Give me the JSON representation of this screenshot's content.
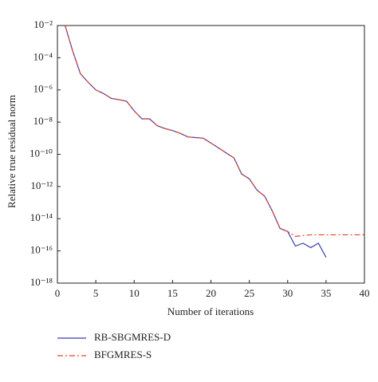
{
  "chart_data": {
    "type": "line",
    "x_label": "Number of iterations",
    "y_label": "Relative true residual norm",
    "log_y": true,
    "xlim": [
      0,
      40
    ],
    "xticks": [
      0,
      5,
      10,
      15,
      20,
      25,
      30,
      35,
      40
    ],
    "ylim": [
      1e-18,
      0.01
    ],
    "yticks": [
      {
        "value": 0.01,
        "label": "10⁻²"
      },
      {
        "value": 0.0001,
        "label": "10⁻⁴"
      },
      {
        "value": 1e-06,
        "label": "10⁻⁶"
      },
      {
        "value": 1e-08,
        "label": "10⁻⁸"
      },
      {
        "value": 1e-10,
        "label": "10⁻¹⁰"
      },
      {
        "value": 1e-12,
        "label": "10⁻¹²"
      },
      {
        "value": 1e-14,
        "label": "10⁻¹⁴"
      },
      {
        "value": 1e-16,
        "label": "10⁻¹⁶"
      },
      {
        "value": 1e-18,
        "label": "10⁻¹⁸"
      }
    ],
    "series": [
      {
        "name": "RB-SBGMRES-D",
        "color": "#3b3bb3",
        "dash": "solid",
        "x": [
          1,
          2,
          3,
          4,
          5,
          6,
          7,
          8,
          9,
          10,
          11,
          12,
          13,
          14,
          15,
          16,
          17,
          18,
          19,
          20,
          21,
          22,
          23,
          24,
          25,
          26,
          27,
          28,
          29,
          30,
          31,
          32,
          33,
          34,
          35
        ],
        "values": [
          0.01,
          0.00025,
          1e-05,
          3e-06,
          1e-06,
          6e-07,
          3e-07,
          2.5e-07,
          2e-07,
          5e-08,
          1.6e-08,
          1.6e-08,
          6e-09,
          4e-09,
          3e-09,
          2e-09,
          1.2e-09,
          1.1e-09,
          1e-09,
          5e-10,
          2.5e-10,
          1.2e-10,
          6e-11,
          6e-12,
          3e-12,
          6e-13,
          2.5e-13,
          3e-14,
          2.5e-15,
          1.6e-15,
          2e-16,
          3e-16,
          1.6e-16,
          3e-16,
          4e-17
        ]
      },
      {
        "name": "BFGMRES-S",
        "color": "#e0452c",
        "dash": "dashdot",
        "x": [
          1,
          2,
          3,
          4,
          5,
          6,
          7,
          8,
          9,
          10,
          11,
          12,
          13,
          14,
          15,
          16,
          17,
          18,
          19,
          20,
          21,
          22,
          23,
          24,
          25,
          26,
          27,
          28,
          29,
          30,
          31,
          32,
          33,
          34,
          35,
          36,
          37,
          38,
          39,
          40
        ],
        "values": [
          0.01,
          0.00025,
          1e-05,
          3e-06,
          1e-06,
          6e-07,
          3e-07,
          2.5e-07,
          2e-07,
          5e-08,
          1.6e-08,
          1.6e-08,
          6e-09,
          4e-09,
          3e-09,
          2e-09,
          1.2e-09,
          1.1e-09,
          1e-09,
          5e-10,
          2.5e-10,
          1.2e-10,
          6e-11,
          6e-12,
          3e-12,
          6e-13,
          2.5e-13,
          3e-14,
          2.5e-15,
          1.6e-15,
          8e-16,
          9e-16,
          1e-15,
          1e-15,
          1e-15,
          1e-15,
          1e-15,
          1e-15,
          1e-15,
          1e-15
        ]
      }
    ]
  }
}
